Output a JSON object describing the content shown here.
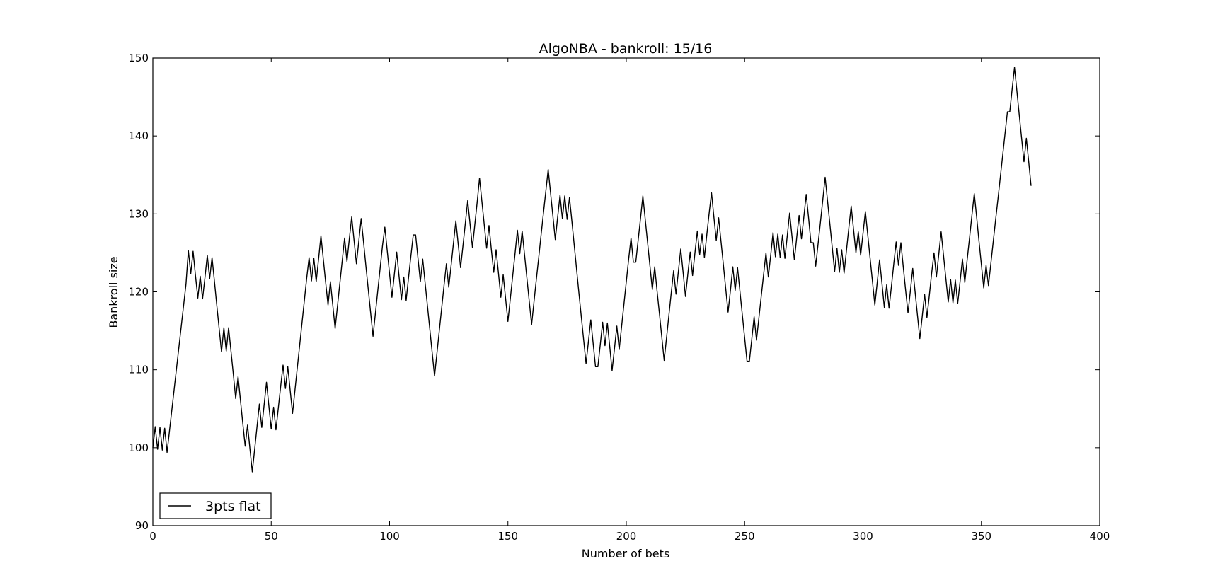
{
  "chart_data": {
    "type": "line",
    "title": "AlgoNBA - bankroll: 15/16",
    "xlabel": "Number of bets",
    "ylabel": "Bankroll size",
    "xlim": [
      0,
      400
    ],
    "ylim": [
      90,
      150
    ],
    "x_ticks": [
      "0",
      "50",
      "100",
      "150",
      "200",
      "250",
      "300",
      "350",
      "400"
    ],
    "y_ticks": [
      "90",
      "100",
      "110",
      "120",
      "130",
      "140",
      "150"
    ],
    "grid": false,
    "legend": {
      "position": "lower-left",
      "entries": [
        "3pts flat"
      ]
    },
    "colors": {
      "line": "#000000",
      "frame": "#000000",
      "background": "#ffffff"
    },
    "series": [
      {
        "name": "3pts flat",
        "x": [
          0,
          1,
          2,
          3,
          4,
          5,
          6,
          7,
          8,
          9,
          10,
          11,
          12,
          13,
          14,
          15,
          16,
          17,
          18,
          19,
          20,
          21,
          22,
          23,
          24,
          25,
          26,
          27,
          28,
          29,
          30,
          31,
          32,
          33,
          34,
          35,
          36,
          37,
          38,
          39,
          40,
          41,
          42,
          43,
          44,
          45,
          46,
          47,
          48,
          49,
          50,
          51,
          52,
          53,
          54,
          55,
          56,
          57,
          58,
          59,
          60,
          61,
          62,
          63,
          64,
          65,
          66,
          67,
          68,
          69,
          70,
          71,
          72,
          73,
          74,
          75,
          76,
          77,
          78,
          79,
          80,
          81,
          82,
          83,
          84,
          85,
          86,
          87,
          88,
          89,
          90,
          91,
          92,
          93,
          94,
          95,
          96,
          97,
          98,
          99,
          100,
          101,
          102,
          103,
          104,
          105,
          106,
          107,
          108,
          109,
          110,
          111,
          112,
          113,
          114,
          115,
          116,
          117,
          118,
          119,
          120,
          121,
          122,
          123,
          124,
          125,
          126,
          127,
          128,
          129,
          130,
          131,
          132,
          133,
          134,
          135,
          136,
          137,
          138,
          139,
          140,
          141,
          142,
          143,
          144,
          145,
          146,
          147,
          148,
          149,
          150,
          151,
          152,
          153,
          154,
          155,
          156,
          157,
          158,
          159,
          160,
          161,
          162,
          163,
          164,
          165,
          166,
          167,
          168,
          169,
          170,
          171,
          172,
          173,
          174,
          175,
          176,
          177,
          178,
          179,
          180,
          181,
          182,
          183,
          184,
          185,
          186,
          187,
          188,
          189,
          190,
          191,
          192,
          193,
          194,
          195,
          196,
          197,
          198,
          199,
          200,
          201,
          202,
          203,
          204,
          205,
          206,
          207,
          208,
          209,
          210,
          211,
          212,
          213,
          214,
          215,
          216,
          217,
          218,
          219,
          220,
          221,
          222,
          223,
          224,
          225,
          226,
          227,
          228,
          229,
          230,
          231,
          232,
          233,
          234,
          235,
          236,
          237,
          238,
          239,
          240,
          241,
          242,
          243,
          244,
          245,
          246,
          247,
          248,
          249,
          250,
          251,
          252,
          253,
          254,
          255,
          256,
          257,
          258,
          259,
          260,
          261,
          262,
          263,
          264,
          265,
          266,
          267,
          268,
          269,
          270,
          271,
          272,
          273,
          274,
          275,
          276,
          277,
          278,
          279,
          280,
          281,
          282,
          283,
          284,
          285,
          286,
          287,
          288,
          289,
          290,
          291,
          292,
          293,
          294,
          295,
          296,
          297,
          298,
          299,
          300,
          301,
          302,
          303,
          304,
          305,
          306,
          307,
          308,
          309,
          310,
          311,
          312,
          313,
          314,
          315,
          316,
          317,
          318,
          319,
          320,
          321,
          322,
          323,
          324,
          325,
          326,
          327,
          328,
          329,
          330,
          331,
          332,
          333,
          334,
          335,
          336,
          337,
          338,
          339,
          340,
          341,
          342,
          343,
          344,
          345,
          346,
          347,
          348,
          349,
          350,
          351,
          352,
          353,
          354,
          355,
          356,
          357,
          358,
          359,
          360,
          361,
          362,
          363,
          364,
          365,
          366,
          367,
          368,
          369,
          370,
          371
        ],
        "values": [
          100.0,
          102.7,
          99.8,
          102.6,
          99.7,
          102.5,
          99.4,
          102.1,
          104.8,
          107.5,
          110.2,
          112.9,
          115.6,
          118.3,
          121.0,
          125.3,
          122.3,
          125.2,
          122.1,
          119.2,
          122.0,
          119.1,
          121.8,
          124.7,
          121.7,
          124.4,
          121.4,
          118.3,
          115.3,
          112.3,
          115.4,
          112.4,
          115.4,
          112.4,
          109.4,
          106.3,
          109.1,
          106.1,
          103.1,
          100.2,
          102.9,
          99.9,
          96.9,
          99.8,
          102.7,
          105.6,
          102.6,
          105.5,
          108.4,
          105.4,
          102.4,
          105.2,
          102.3,
          105.1,
          107.9,
          110.6,
          107.6,
          110.4,
          107.4,
          104.4,
          107.3,
          110.2,
          113.1,
          116.0,
          118.9,
          121.8,
          124.4,
          121.4,
          124.3,
          121.3,
          124.2,
          127.2,
          124.2,
          121.2,
          118.3,
          121.3,
          118.3,
          115.3,
          118.2,
          121.1,
          124.0,
          126.9,
          123.9,
          126.8,
          129.6,
          126.6,
          123.6,
          126.5,
          129.4,
          126.4,
          123.3,
          120.3,
          117.3,
          114.3,
          117.2,
          120.1,
          123.0,
          125.9,
          128.3,
          125.3,
          122.3,
          119.3,
          122.2,
          125.1,
          122.0,
          119.0,
          121.9,
          118.9,
          121.8,
          124.6,
          127.3,
          127.3,
          124.3,
          121.3,
          124.2,
          121.2,
          118.2,
          115.2,
          112.2,
          109.2,
          112.1,
          115.0,
          117.9,
          120.8,
          123.6,
          120.6,
          123.4,
          126.3,
          129.1,
          126.1,
          123.1,
          125.9,
          128.8,
          131.7,
          128.7,
          125.7,
          128.6,
          131.5,
          134.6,
          131.6,
          128.6,
          125.6,
          128.5,
          125.4,
          122.5,
          125.4,
          122.4,
          119.3,
          122.2,
          119.2,
          116.2,
          119.1,
          122.0,
          124.9,
          127.9,
          124.9,
          127.8,
          124.8,
          121.8,
          118.8,
          115.8,
          118.7,
          121.6,
          124.4,
          127.3,
          130.1,
          132.9,
          135.7,
          132.7,
          129.7,
          126.7,
          129.6,
          132.4,
          129.4,
          132.3,
          129.3,
          132.1,
          129.1,
          126.0,
          122.9,
          119.8,
          116.8,
          113.8,
          110.8,
          113.6,
          116.4,
          113.4,
          110.4,
          110.4,
          113.2,
          116.1,
          113.1,
          116.0,
          113.0,
          109.9,
          112.7,
          115.6,
          112.6,
          115.5,
          118.4,
          121.3,
          124.2,
          126.9,
          123.8,
          123.8,
          126.6,
          129.4,
          132.3,
          129.3,
          126.3,
          123.3,
          120.3,
          123.2,
          120.1,
          117.2,
          114.2,
          111.2,
          114.1,
          117.0,
          119.9,
          122.7,
          119.7,
          122.6,
          125.5,
          122.5,
          119.4,
          122.3,
          125.1,
          122.1,
          125.0,
          127.8,
          124.8,
          127.4,
          124.4,
          127.3,
          130.1,
          132.7,
          129.6,
          126.6,
          129.5,
          126.5,
          123.5,
          120.4,
          117.4,
          120.2,
          123.2,
          120.2,
          123.1,
          120.1,
          117.1,
          114.1,
          111.1,
          111.1,
          113.9,
          116.8,
          113.8,
          116.6,
          119.4,
          122.2,
          125.0,
          121.9,
          124.7,
          127.6,
          124.5,
          127.4,
          124.4,
          127.3,
          124.3,
          127.2,
          130.1,
          127.1,
          124.1,
          127.0,
          129.8,
          126.8,
          129.6,
          132.5,
          129.5,
          126.3,
          126.3,
          123.3,
          126.1,
          128.9,
          131.8,
          134.7,
          131.7,
          128.7,
          125.7,
          122.6,
          125.6,
          122.5,
          125.4,
          122.4,
          125.3,
          128.2,
          131.0,
          128.0,
          125.0,
          127.7,
          124.7,
          127.5,
          130.3,
          127.3,
          124.3,
          121.3,
          118.3,
          121.2,
          124.1,
          121.1,
          118.0,
          120.9,
          117.9,
          120.7,
          123.6,
          126.4,
          123.4,
          126.3,
          123.2,
          120.2,
          117.3,
          120.1,
          123.0,
          120.0,
          117.0,
          114.0,
          116.8,
          119.7,
          116.7,
          119.5,
          122.4,
          125.0,
          121.9,
          124.8,
          127.7,
          124.7,
          121.7,
          118.7,
          121.6,
          118.6,
          121.5,
          118.5,
          121.3,
          124.2,
          121.2,
          124.1,
          126.9,
          129.8,
          132.6,
          129.6,
          126.5,
          123.5,
          120.5,
          123.4,
          120.8,
          123.6,
          126.4,
          129.2,
          131.9,
          134.7,
          137.5,
          140.3,
          143.1,
          143.1,
          146.0,
          148.8,
          145.8,
          142.7,
          139.7,
          136.7,
          139.7,
          136.7,
          133.6
        ]
      }
    ]
  }
}
